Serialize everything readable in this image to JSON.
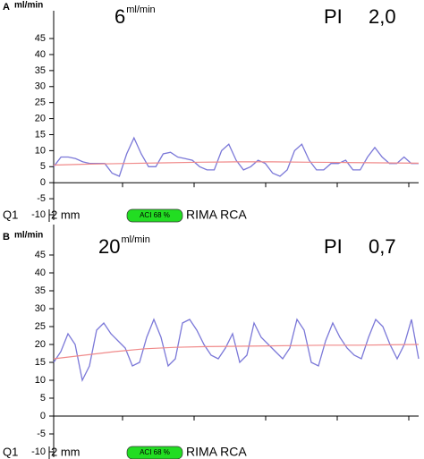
{
  "chart_data": [
    {
      "type": "line",
      "panel_label": "A",
      "y_unit": "ml/min",
      "flow_value": "6",
      "flow_unit": "ml/min",
      "pi_label": "PI",
      "pi_value": "2,0",
      "ylim": [
        -10,
        52
      ],
      "yticks": [
        -10,
        -5,
        0,
        5,
        10,
        15,
        20,
        25,
        30,
        35,
        40,
        45
      ],
      "series": [
        {
          "color": "#7b78d8",
          "values": [
            5,
            8,
            8,
            7.5,
            6.5,
            6,
            6,
            6,
            3,
            2,
            9,
            14,
            9,
            5,
            5,
            9,
            9.5,
            8,
            7.5,
            7,
            5,
            4,
            4,
            10,
            12,
            7,
            4,
            5,
            7,
            6,
            3,
            2,
            4,
            10,
            12,
            7,
            4,
            4,
            6,
            6,
            7,
            4,
            4,
            8,
            11,
            8,
            6,
            6,
            8,
            6,
            6
          ]
        },
        {
          "color": "#f08a8a",
          "values": [
            5.5,
            5.8,
            6,
            6.2,
            6.4,
            6.5,
            6.5,
            6.4,
            6.3,
            6.2,
            6.1
          ]
        }
      ],
      "footer": {
        "probe": "Q1",
        "size": "2 mm",
        "badge": "ACI 68 %",
        "badge_color": "#22dd22",
        "vessel": "RIMA RCA"
      }
    },
    {
      "type": "line",
      "panel_label": "B",
      "y_unit": "ml/min",
      "flow_value": "20",
      "flow_unit": "ml/min",
      "pi_label": "PI",
      "pi_value": "0,7",
      "ylim": [
        -10,
        52
      ],
      "yticks": [
        -10,
        -5,
        0,
        5,
        10,
        15,
        20,
        25,
        30,
        35,
        40,
        45
      ],
      "series": [
        {
          "color": "#7b78d8",
          "values": [
            15,
            18,
            23,
            20,
            10,
            14,
            24,
            26,
            23,
            21,
            19,
            14,
            15,
            22,
            27,
            22,
            14,
            16,
            26,
            27,
            24,
            20,
            17,
            16,
            19,
            23,
            15,
            17,
            26,
            22,
            20,
            18,
            16,
            19,
            27,
            24,
            15,
            14,
            21,
            26,
            22,
            19,
            17,
            16,
            22,
            27,
            25,
            20,
            16,
            20,
            27,
            16
          ]
        },
        {
          "color": "#f08a8a",
          "values": [
            16,
            17,
            18,
            18.8,
            19.2,
            19.4,
            19.5,
            19.6,
            19.7,
            19.8,
            19.8,
            19.9,
            20
          ]
        }
      ],
      "footer": {
        "probe": "Q1",
        "size": "2 mm",
        "badge": "ACI 68 %",
        "badge_color": "#22dd22",
        "vessel": "RIMA RCA"
      }
    }
  ]
}
